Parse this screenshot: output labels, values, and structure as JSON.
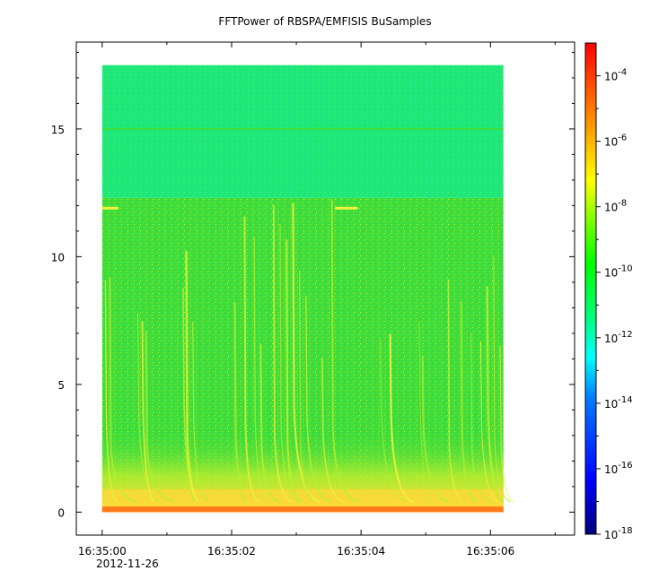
{
  "chart_data": {
    "type": "heatmap",
    "title": "FFTPower of RBSPA/EMFISIS  BuSamples",
    "xlabel": "",
    "ylabel": "",
    "x_ticks": [
      {
        "label": "16:35:00",
        "t": 0
      },
      {
        "label": "16:35:02",
        "t": 2
      },
      {
        "label": "16:35:04",
        "t": 4
      },
      {
        "label": "16:35:06",
        "t": 6
      }
    ],
    "x_minor_ticks": [
      1,
      3,
      5,
      7
    ],
    "x_date_label": "2012-11-26",
    "xlim_seconds_after_163500": [
      -0.4,
      7.3
    ],
    "y_ticks": [
      0,
      5,
      10,
      15
    ],
    "ylim": [
      -0.9,
      18.4
    ],
    "data_extent": {
      "t_start": 0.0,
      "t_end": 6.2,
      "f_min": 0.0,
      "f_max": 17.5
    },
    "colorbar": {
      "scale": "log",
      "range": [
        1e-18,
        0.001
      ],
      "tick_exponents": [
        -18,
        -16,
        -14,
        -12,
        -10,
        -8,
        -6,
        -4
      ],
      "tick_base": "10",
      "colormap": [
        "#00007f",
        "#0000ff",
        "#007fff",
        "#00ffff",
        "#00ff7f",
        "#00ff00",
        "#7fff00",
        "#ffff00",
        "#ff7f00",
        "#ff0000"
      ]
    },
    "colors": {
      "background_band": "#1fe878",
      "main_band": "#3fdc3a",
      "speckle": "#b7f030",
      "whistler": "#f4f23a",
      "low_band": "#ffd83a",
      "bottom_line": "#ff7a1a"
    }
  }
}
